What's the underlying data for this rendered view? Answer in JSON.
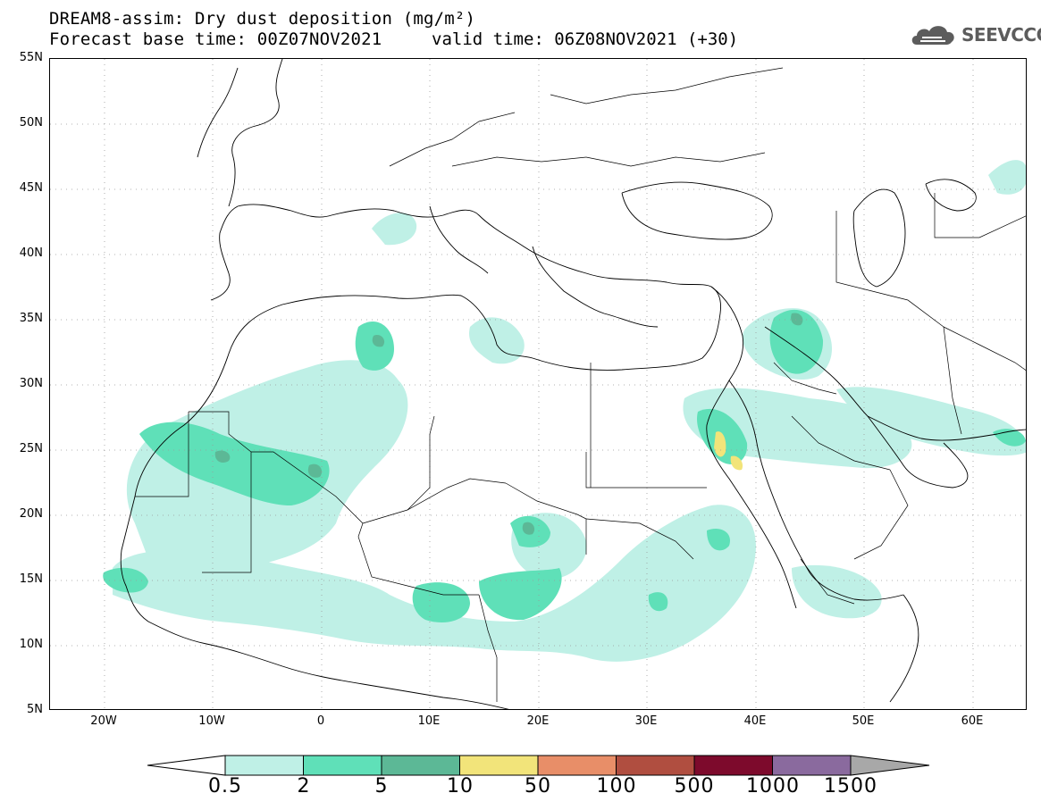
{
  "title": {
    "line1": "DREAM8-assim: Dry dust deposition (mg/m²)",
    "line2": "Forecast base time: 00Z07NOV2021",
    "valid": "valid time: 06Z08NOV2021 (+30)"
  },
  "logo": {
    "text": "SEEVCCC",
    "icon": "cloud-icon"
  },
  "map": {
    "lat_labels": [
      "55N",
      "50N",
      "45N",
      "40N",
      "35N",
      "30N",
      "25N",
      "20N",
      "15N",
      "10N",
      "5N"
    ],
    "lon_labels": [
      "20W",
      "10W",
      "0",
      "10E",
      "20E",
      "30E",
      "40E",
      "50E",
      "60E"
    ],
    "grid": "dotted",
    "extent": {
      "lon": [
        -25,
        65
      ],
      "lat": [
        5,
        55
      ]
    }
  },
  "colorbar": {
    "labels": [
      "0.5",
      "2",
      "5",
      "10",
      "50",
      "100",
      "500",
      "1000",
      "1500"
    ],
    "colors": [
      "#ffffff",
      "#bff0e6",
      "#5fe0b8",
      "#5cb896",
      "#f2e47a",
      "#e88e68",
      "#b04e40",
      "#7d0a2c",
      "#8a6a9e",
      "#a8a8a8"
    ]
  }
}
